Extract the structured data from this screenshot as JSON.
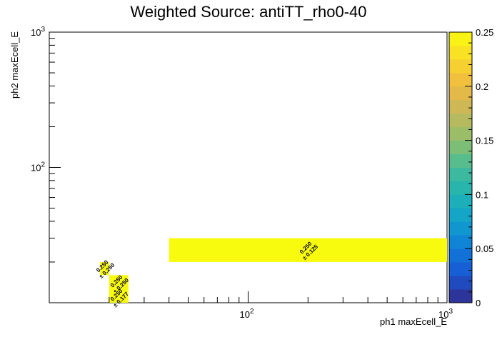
{
  "chart_data": {
    "type": "heatmap",
    "title": "Weighted Source: antiTT_rho0-40",
    "xlabel": "ph1 maxEcell_E",
    "ylabel": "ph2 maxEcell_E",
    "xscale": "log",
    "yscale": "log",
    "xlim": [
      10,
      1000
    ],
    "ylim": [
      10,
      1000
    ],
    "x_tick_labels": [
      "10^2",
      "10^3"
    ],
    "y_tick_labels": [
      "10^2",
      "10^3"
    ],
    "z_range": [
      0,
      0.25
    ],
    "colorbar_ticks": [
      "0",
      "0.05",
      "0.1",
      "0.15",
      "0.2",
      "0.25"
    ],
    "cells": [
      {
        "x0": 40,
        "x1": 1000,
        "y0": 20,
        "y1": 30,
        "value": 0.25,
        "label": "0.250",
        "error_label": "± 0.125"
      },
      {
        "x0": 18,
        "x1": 20,
        "y0": 16,
        "y1": 20,
        "value": 0.25,
        "label": "0.250",
        "error_label": "± 0.250"
      },
      {
        "x0": 20,
        "x1": 25,
        "y0": 12,
        "y1": 16,
        "value": 0.25,
        "label": "0.250",
        "error_label": "± 0.250"
      },
      {
        "x0": 20,
        "x1": 25,
        "y0": 10,
        "y1": 12,
        "value": 0.25,
        "label": "0.250",
        "error_label": "± 0.177"
      }
    ],
    "grid": false,
    "colorbar": "right"
  }
}
